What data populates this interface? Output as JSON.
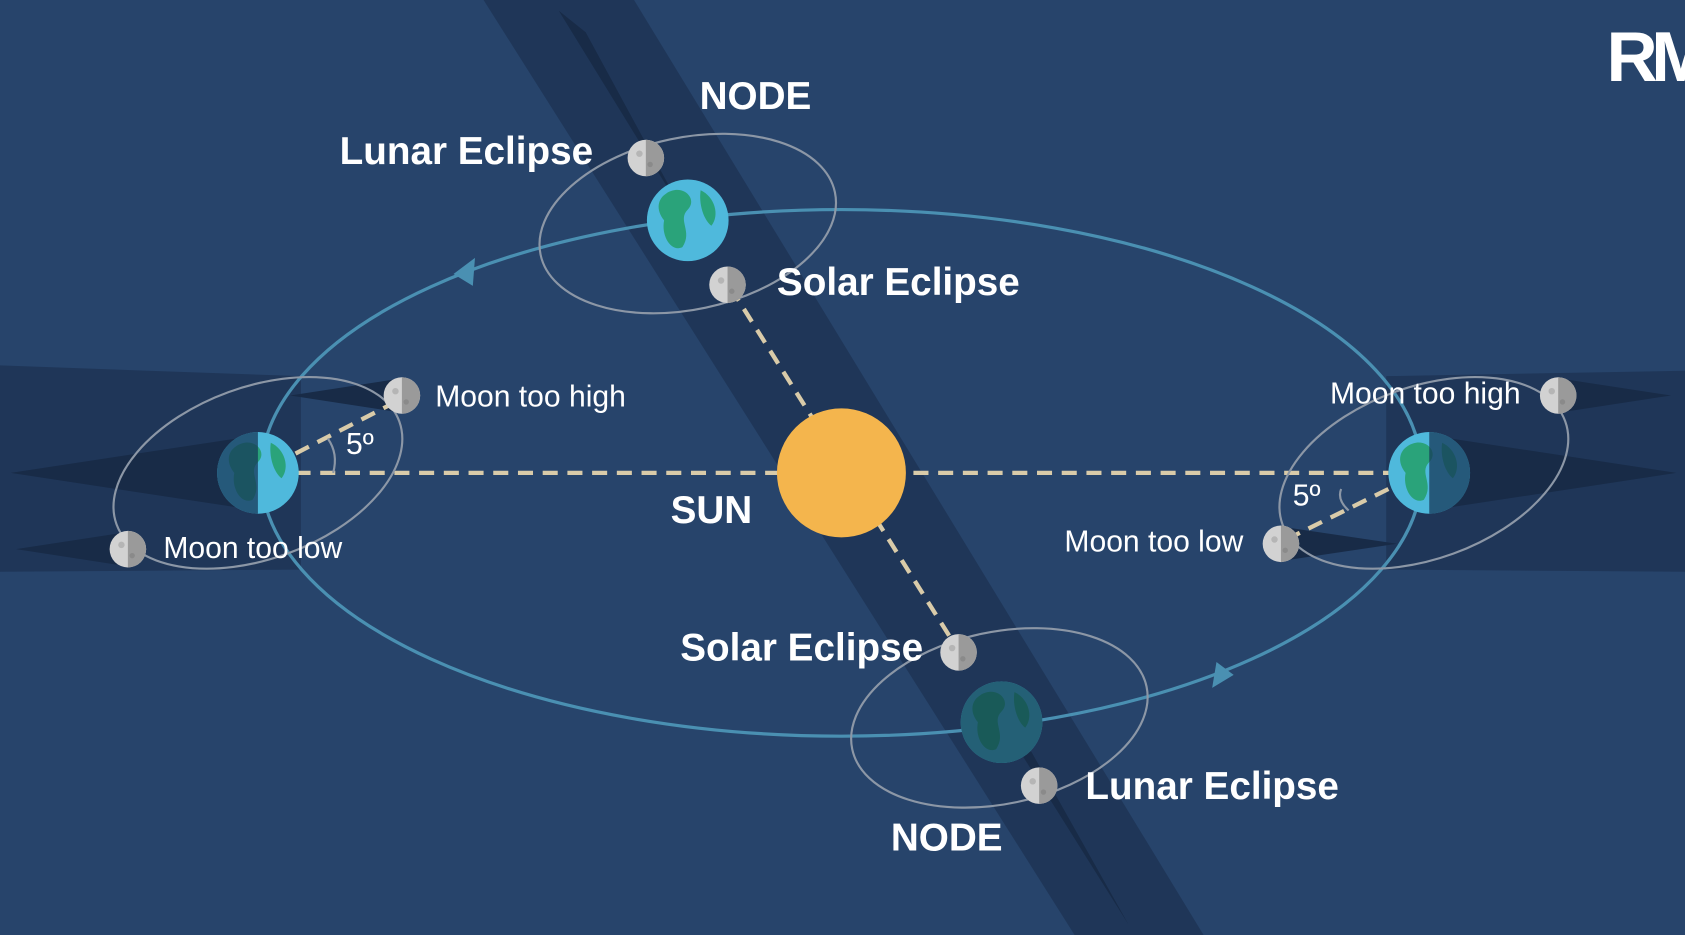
{
  "sun": "SUN",
  "nodes": [
    "NODE",
    "NODE"
  ],
  "lunar_eclipse": [
    "Lunar Eclipse",
    "Lunar Eclipse"
  ],
  "solar_eclipse": [
    "Solar Eclipse",
    "Solar Eclipse"
  ],
  "moon_too_high": [
    "Moon too high",
    "Moon too high"
  ],
  "moon_too_low": [
    "Moon too low",
    "Moon too low"
  ],
  "angles": [
    "5º",
    "5º"
  ],
  "logo": "RM"
}
